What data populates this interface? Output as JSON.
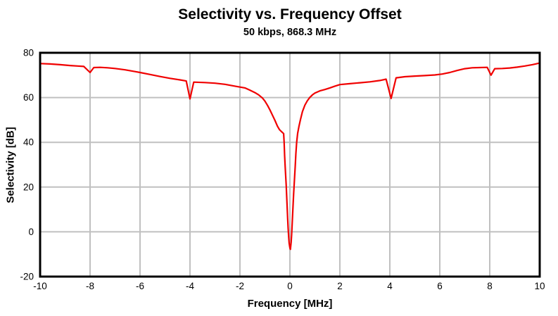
{
  "colors": {
    "background": "#ffffff",
    "line": "#f00000",
    "grid": "#c0c0c0",
    "frame": "#000000",
    "text": "#000000"
  },
  "chart_data": {
    "type": "line",
    "title": "Selectivity vs. Frequency Offset",
    "subtitle": "50 kbps, 868.3 MHz",
    "xlabel": "Frequency [MHz]",
    "ylabel": "Selectivity [dB]",
    "xlim": [
      -10,
      10
    ],
    "ylim": [
      -20,
      80
    ],
    "xticks": [
      -10,
      -8,
      -6,
      -4,
      -2,
      0,
      2,
      4,
      6,
      8,
      10
    ],
    "yticks": [
      -20,
      0,
      20,
      40,
      60,
      80
    ],
    "grid": true,
    "legend": false,
    "series": [
      {
        "name": "Selectivity",
        "color": "#f00000",
        "points": [
          [
            -10.0,
            75.2
          ],
          [
            -9.6,
            75.0
          ],
          [
            -9.2,
            74.7
          ],
          [
            -8.8,
            74.3
          ],
          [
            -8.5,
            74.1
          ],
          [
            -8.25,
            73.9
          ],
          [
            -8.0,
            71.2
          ],
          [
            -7.85,
            73.4
          ],
          [
            -7.6,
            73.5
          ],
          [
            -7.3,
            73.3
          ],
          [
            -7.0,
            73.0
          ],
          [
            -6.6,
            72.4
          ],
          [
            -6.2,
            71.6
          ],
          [
            -6.0,
            71.2
          ],
          [
            -5.6,
            70.3
          ],
          [
            -5.2,
            69.4
          ],
          [
            -4.8,
            68.6
          ],
          [
            -4.4,
            67.9
          ],
          [
            -4.15,
            67.4
          ],
          [
            -4.0,
            59.4
          ],
          [
            -3.85,
            66.9
          ],
          [
            -3.4,
            66.7
          ],
          [
            -3.0,
            66.4
          ],
          [
            -2.6,
            65.9
          ],
          [
            -2.2,
            65.1
          ],
          [
            -2.0,
            64.7
          ],
          [
            -1.8,
            64.3
          ],
          [
            -1.6,
            63.3
          ],
          [
            -1.4,
            62.2
          ],
          [
            -1.25,
            61.2
          ],
          [
            -1.1,
            59.8
          ],
          [
            -1.0,
            58.4
          ],
          [
            -0.9,
            56.6
          ],
          [
            -0.8,
            54.5
          ],
          [
            -0.7,
            52.1
          ],
          [
            -0.6,
            49.8
          ],
          [
            -0.5,
            47.2
          ],
          [
            -0.42,
            45.7
          ],
          [
            -0.35,
            44.9
          ],
          [
            -0.3,
            44.4
          ],
          [
            -0.25,
            43.9
          ],
          [
            -0.23,
            40.0
          ],
          [
            -0.21,
            34.0
          ],
          [
            -0.19,
            29.0
          ],
          [
            -0.17,
            25.0
          ],
          [
            -0.15,
            21.0
          ],
          [
            -0.13,
            16.0
          ],
          [
            -0.11,
            11.0
          ],
          [
            -0.09,
            6.0
          ],
          [
            -0.07,
            1.5
          ],
          [
            -0.05,
            -2.0
          ],
          [
            -0.03,
            -5.0
          ],
          [
            0.0,
            -7.2
          ],
          [
            0.02,
            -7.8
          ],
          [
            0.05,
            -4.5
          ],
          [
            0.07,
            -1.0
          ],
          [
            0.09,
            3.5
          ],
          [
            0.11,
            8.0
          ],
          [
            0.13,
            12.5
          ],
          [
            0.15,
            17.0
          ],
          [
            0.18,
            23.0
          ],
          [
            0.21,
            29.0
          ],
          [
            0.24,
            35.0
          ],
          [
            0.27,
            40.0
          ],
          [
            0.31,
            44.0
          ],
          [
            0.36,
            47.0
          ],
          [
            0.42,
            50.0
          ],
          [
            0.5,
            53.7
          ],
          [
            0.6,
            56.6
          ],
          [
            0.7,
            58.6
          ],
          [
            0.8,
            60.1
          ],
          [
            0.9,
            61.2
          ],
          [
            1.0,
            62.0
          ],
          [
            1.2,
            63.0
          ],
          [
            1.4,
            63.6
          ],
          [
            1.6,
            64.3
          ],
          [
            1.8,
            65.1
          ],
          [
            2.0,
            65.8
          ],
          [
            2.4,
            66.2
          ],
          [
            2.8,
            66.6
          ],
          [
            3.2,
            67.0
          ],
          [
            3.6,
            67.6
          ],
          [
            3.85,
            68.2
          ],
          [
            4.05,
            59.6
          ],
          [
            4.25,
            68.8
          ],
          [
            4.6,
            69.3
          ],
          [
            5.0,
            69.6
          ],
          [
            5.4,
            69.8
          ],
          [
            5.8,
            70.1
          ],
          [
            6.1,
            70.5
          ],
          [
            6.4,
            71.2
          ],
          [
            6.7,
            72.1
          ],
          [
            7.0,
            72.9
          ],
          [
            7.3,
            73.3
          ],
          [
            7.6,
            73.4
          ],
          [
            7.9,
            73.5
          ],
          [
            8.05,
            70.0
          ],
          [
            8.2,
            72.9
          ],
          [
            8.5,
            73.0
          ],
          [
            8.8,
            73.2
          ],
          [
            9.1,
            73.6
          ],
          [
            9.4,
            74.1
          ],
          [
            9.7,
            74.7
          ],
          [
            10.0,
            75.4
          ]
        ]
      }
    ]
  }
}
